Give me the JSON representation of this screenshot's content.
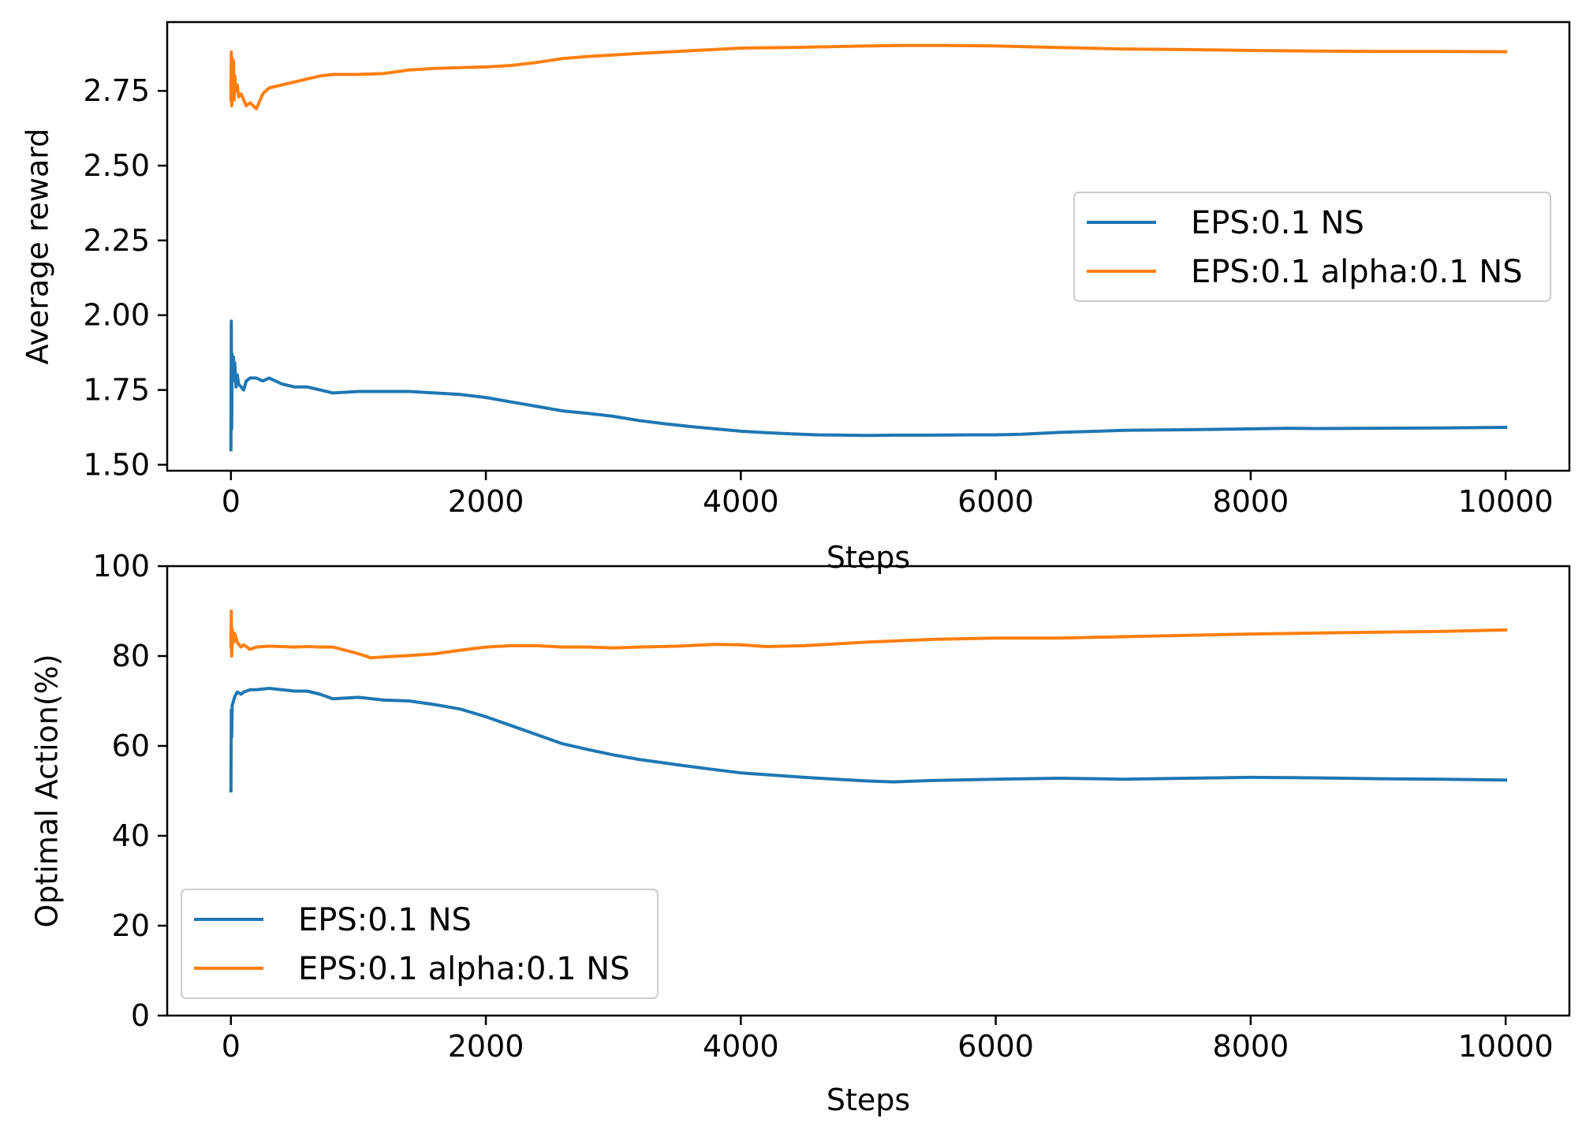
{
  "chart_data": [
    {
      "type": "line",
      "xlabel": "Steps",
      "ylabel": "Average reward",
      "xlim": [
        -500,
        10500
      ],
      "ylim": [
        1.48,
        2.98
      ],
      "xticks": [
        0,
        2000,
        4000,
        6000,
        8000,
        10000
      ],
      "xtick_labels": [
        "0",
        "2000",
        "4000",
        "6000",
        "8000",
        "10000"
      ],
      "yticks": [
        1.5,
        1.75,
        2.0,
        2.25,
        2.5,
        2.75
      ],
      "ytick_labels": [
        "1.50",
        "1.75",
        "2.00",
        "2.25",
        "2.50",
        "2.75"
      ],
      "grid": false,
      "legend_position": "center-right",
      "series": [
        {
          "name": "EPS:0.1 NS",
          "color": "#1f77b4",
          "x": [
            0,
            3,
            6,
            10,
            15,
            20,
            25,
            30,
            40,
            50,
            60,
            80,
            100,
            120,
            150,
            200,
            250,
            300,
            400,
            500,
            600,
            700,
            800,
            1000,
            1200,
            1400,
            1600,
            1800,
            2000,
            2200,
            2400,
            2600,
            2800,
            3000,
            3200,
            3400,
            3600,
            3800,
            4000,
            4200,
            4400,
            4600,
            4800,
            5000,
            5200,
            5500,
            5800,
            6000,
            6200,
            6500,
            6800,
            7000,
            7500,
            8000,
            8300,
            8500,
            9000,
            9500,
            10000
          ],
          "y": [
            1.55,
            1.98,
            1.62,
            1.87,
            1.78,
            1.86,
            1.8,
            1.84,
            1.76,
            1.8,
            1.77,
            1.76,
            1.75,
            1.78,
            1.79,
            1.79,
            1.78,
            1.79,
            1.77,
            1.76,
            1.76,
            1.75,
            1.74,
            1.745,
            1.745,
            1.745,
            1.74,
            1.735,
            1.725,
            1.71,
            1.695,
            1.68,
            1.672,
            1.662,
            1.648,
            1.637,
            1.628,
            1.62,
            1.612,
            1.607,
            1.603,
            1.6,
            1.599,
            1.598,
            1.599,
            1.599,
            1.6,
            1.6,
            1.602,
            1.608,
            1.612,
            1.615,
            1.617,
            1.62,
            1.622,
            1.621,
            1.622,
            1.623,
            1.625
          ]
        },
        {
          "name": "EPS:0.1 alpha:0.1 NS",
          "color": "#ff7f0e",
          "x": [
            0,
            3,
            6,
            10,
            15,
            20,
            25,
            30,
            40,
            50,
            60,
            80,
            100,
            120,
            150,
            200,
            250,
            300,
            400,
            500,
            600,
            700,
            800,
            1000,
            1200,
            1400,
            1600,
            1800,
            2000,
            2200,
            2400,
            2600,
            2800,
            3000,
            3200,
            3500,
            4000,
            4500,
            5000,
            5300,
            5600,
            6000,
            6500,
            7000,
            7500,
            8000,
            8500,
            9000,
            9500,
            10000
          ],
          "y": [
            2.72,
            2.88,
            2.7,
            2.86,
            2.74,
            2.85,
            2.72,
            2.8,
            2.75,
            2.77,
            2.73,
            2.74,
            2.72,
            2.7,
            2.71,
            2.69,
            2.74,
            2.76,
            2.77,
            2.78,
            2.79,
            2.8,
            2.805,
            2.805,
            2.808,
            2.82,
            2.825,
            2.828,
            2.83,
            2.835,
            2.845,
            2.858,
            2.865,
            2.87,
            2.875,
            2.882,
            2.893,
            2.896,
            2.9,
            2.902,
            2.902,
            2.9,
            2.895,
            2.89,
            2.888,
            2.885,
            2.883,
            2.882,
            2.882,
            2.881
          ]
        }
      ]
    },
    {
      "type": "line",
      "xlabel": "Steps",
      "ylabel": "Optimal Action(%)",
      "xlim": [
        -500,
        10500
      ],
      "ylim": [
        0,
        100
      ],
      "xticks": [
        0,
        2000,
        4000,
        6000,
        8000,
        10000
      ],
      "xtick_labels": [
        "0",
        "2000",
        "4000",
        "6000",
        "8000",
        "10000"
      ],
      "yticks": [
        0,
        20,
        40,
        60,
        80,
        100
      ],
      "ytick_labels": [
        "0",
        "20",
        "40",
        "60",
        "80",
        "100"
      ],
      "grid": false,
      "legend_position": "lower-left",
      "series": [
        {
          "name": "EPS:0.1 NS",
          "color": "#1f77b4",
          "x": [
            0,
            3,
            6,
            10,
            20,
            30,
            50,
            80,
            100,
            150,
            200,
            300,
            400,
            500,
            600,
            700,
            800,
            1000,
            1200,
            1400,
            1600,
            1800,
            2000,
            2200,
            2400,
            2600,
            2800,
            3000,
            3200,
            3500,
            3800,
            4000,
            4200,
            4500,
            4800,
            5000,
            5200,
            5500,
            6000,
            6500,
            7000,
            7500,
            8000,
            8500,
            9000,
            9500,
            10000
          ],
          "y": [
            50,
            68,
            62,
            69,
            70,
            71,
            72,
            71.5,
            72,
            72.5,
            72.5,
            72.8,
            72.5,
            72.2,
            72.2,
            71.5,
            70.5,
            70.8,
            70.2,
            70,
            69.2,
            68.2,
            66.5,
            64.5,
            62.5,
            60.5,
            59.2,
            58,
            57,
            55.8,
            54.7,
            54,
            53.6,
            53,
            52.5,
            52.2,
            52,
            52.3,
            52.6,
            52.8,
            52.6,
            52.8,
            53,
            52.9,
            52.7,
            52.6,
            52.4
          ]
        },
        {
          "name": "EPS:0.1 alpha:0.1 NS",
          "color": "#ff7f0e",
          "x": [
            0,
            3,
            6,
            10,
            20,
            30,
            50,
            80,
            100,
            150,
            200,
            300,
            400,
            500,
            600,
            700,
            800,
            1000,
            1100,
            1200,
            1400,
            1600,
            1800,
            2000,
            2200,
            2400,
            2600,
            2800,
            3000,
            3200,
            3500,
            3800,
            4000,
            4200,
            4500,
            5000,
            5500,
            6000,
            6500,
            7000,
            7500,
            8000,
            8500,
            9000,
            9500,
            10000
          ],
          "y": [
            82,
            90,
            80,
            86,
            83,
            85,
            83,
            82,
            82.5,
            81.5,
            82,
            82.2,
            82.1,
            82,
            82.1,
            82,
            82,
            80.5,
            79.6,
            79.8,
            80.1,
            80.5,
            81.3,
            82,
            82.3,
            82.3,
            82,
            82,
            81.8,
            82,
            82.2,
            82.6,
            82.5,
            82.1,
            82.3,
            83.1,
            83.7,
            84,
            84,
            84.3,
            84.6,
            84.9,
            85.1,
            85.3,
            85.5,
            85.8
          ]
        }
      ]
    }
  ]
}
